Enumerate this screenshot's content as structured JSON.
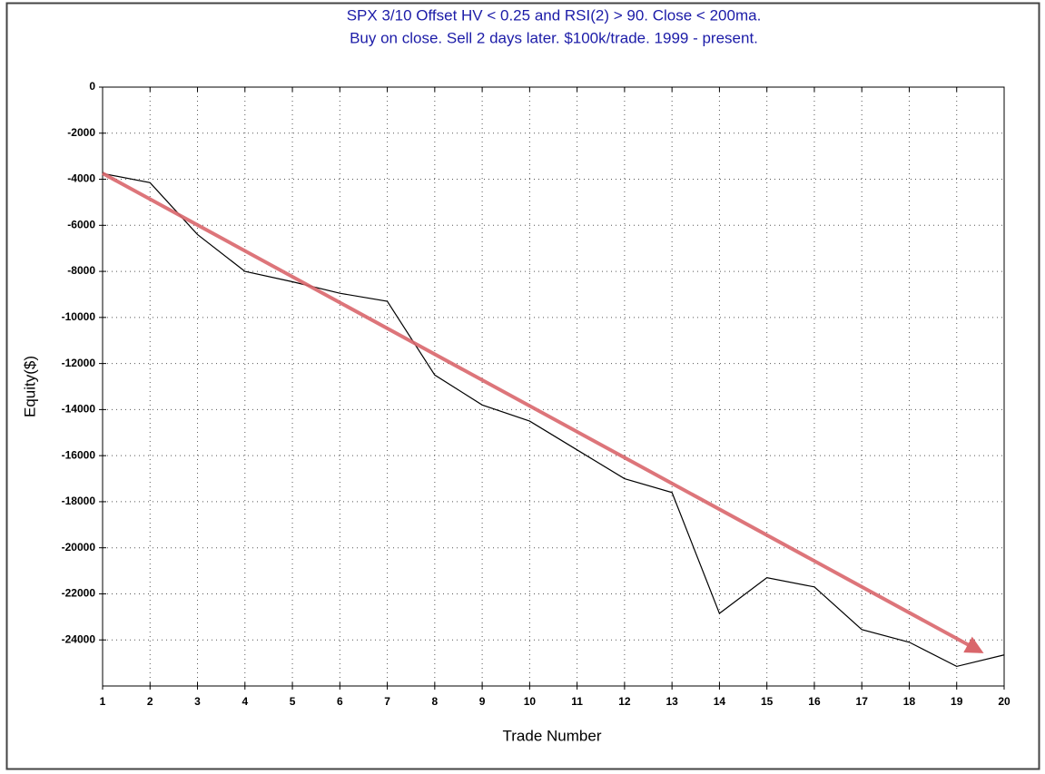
{
  "chart_data": {
    "type": "line",
    "title": "SPX 3/10 Offset HV < 0.25 and RSI(2) > 90. Close < 200ma.",
    "subtitle": "Buy on close. Sell 2 days later. $100k/trade. 1999 - present.",
    "x_label": "Trade Number",
    "y_label": "Equity($)",
    "x": [
      1,
      2,
      3,
      4,
      5,
      6,
      7,
      8,
      9,
      10,
      11,
      12,
      13,
      14,
      15,
      16,
      17,
      18,
      19,
      20
    ],
    "series": [
      {
        "name": "Equity",
        "color": "#000000",
        "values": [
          -3750,
          -4150,
          -6400,
          -8000,
          -8450,
          -8950,
          -9300,
          -12500,
          -13800,
          -14500,
          -15750,
          -17000,
          -17600,
          -22850,
          -21300,
          -21700,
          -23550,
          -24100,
          -25150,
          -24650
        ]
      }
    ],
    "xlim": [
      1,
      20
    ],
    "xticks": [
      1,
      2,
      3,
      4,
      5,
      6,
      7,
      8,
      9,
      10,
      11,
      12,
      13,
      14,
      15,
      16,
      17,
      18,
      19,
      20
    ],
    "ylim": [
      -26000,
      0
    ],
    "yticks": [
      0,
      -2000,
      -4000,
      -6000,
      -8000,
      -10000,
      -12000,
      -14000,
      -16000,
      -18000,
      -20000,
      -22000,
      -24000
    ],
    "grid": true
  }
}
